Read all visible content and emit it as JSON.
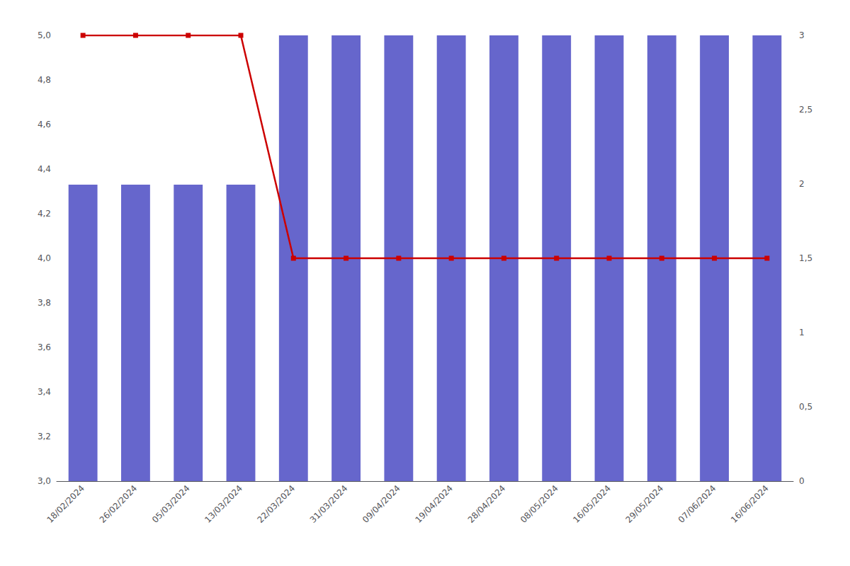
{
  "chart_data": {
    "type": "bar",
    "categories": [
      "18/02/2024",
      "26/02/2024",
      "05/03/2024",
      "13/03/2024",
      "22/03/2024",
      "31/03/2024",
      "09/04/2024",
      "19/04/2024",
      "28/04/2024",
      "08/05/2024",
      "16/05/2024",
      "29/05/2024",
      "07/06/2024",
      "16/06/2024"
    ],
    "series": [
      {
        "type": "bar",
        "color": "#6666cc",
        "values": [
          4.33,
          4.33,
          4.33,
          4.33,
          5.0,
          5.0,
          5.0,
          5.0,
          5.0,
          5.0,
          5.0,
          5.0,
          5.0,
          5.0
        ]
      },
      {
        "type": "line",
        "color": "#cc0000",
        "marker": "square",
        "values": [
          5.0,
          5.0,
          5.0,
          5.0,
          4.0,
          4.0,
          4.0,
          4.0,
          4.0,
          4.0,
          4.0,
          4.0,
          4.0,
          4.0
        ]
      }
    ],
    "ylim": [
      3.0,
      5.0
    ],
    "yticks": [
      {
        "value": 3.0,
        "label": "3,0"
      },
      {
        "value": 3.2,
        "label": "3,2"
      },
      {
        "value": 3.4,
        "label": "3,4"
      },
      {
        "value": 3.6,
        "label": "3,6"
      },
      {
        "value": 3.8,
        "label": "3,8"
      },
      {
        "value": 4.0,
        "label": "4,0"
      },
      {
        "value": 4.2,
        "label": "4,2"
      },
      {
        "value": 4.4,
        "label": "4,4"
      },
      {
        "value": 4.6,
        "label": "4,6"
      },
      {
        "value": 4.8,
        "label": "4,8"
      },
      {
        "value": 5.0,
        "label": "5,0"
      }
    ],
    "y2lim": [
      0,
      3.0
    ],
    "y2ticks": [
      0,
      {
        "value": 0.5,
        "label": "0,5"
      },
      1,
      {
        "value": 1.5,
        "label": "1,5"
      },
      2,
      {
        "value": 2.5,
        "label": "2,5"
      },
      3
    ],
    "grid": false
  }
}
